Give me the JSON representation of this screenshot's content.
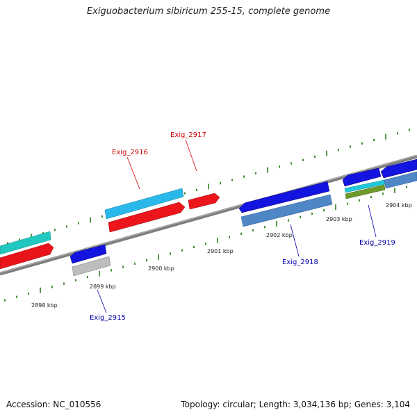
{
  "title": "Exiguobacterium sibiricum 255-15, complete genome",
  "footer": {
    "accession": "Accession: NC_010556",
    "summary": "Topology: circular; Length: 3,034,136 bp; Genes: 3,104"
  },
  "colors": {
    "backbone": "#8a8a8a",
    "tick": "#2e7d1e",
    "forward_label": "#cc0000",
    "reverse_label": "#0000aa",
    "ruler_label": "#222222"
  },
  "ruler": [
    {
      "label": "2898 kbp"
    },
    {
      "label": "2899 kbp"
    },
    {
      "label": "2900 kbp"
    },
    {
      "label": "2901 kbp"
    },
    {
      "label": "2902 kbp"
    },
    {
      "label": "2903 kbp"
    },
    {
      "label": "2904 kbp"
    }
  ],
  "gene_labels": [
    {
      "text": "Exig_2916",
      "strand": "forward"
    },
    {
      "text": "Exig_2917",
      "strand": "forward"
    },
    {
      "text": "Exig_2915",
      "strand": "reverse"
    },
    {
      "text": "Exig_2918",
      "strand": "reverse"
    },
    {
      "text": "Exig_2919",
      "strand": "reverse"
    }
  ]
}
